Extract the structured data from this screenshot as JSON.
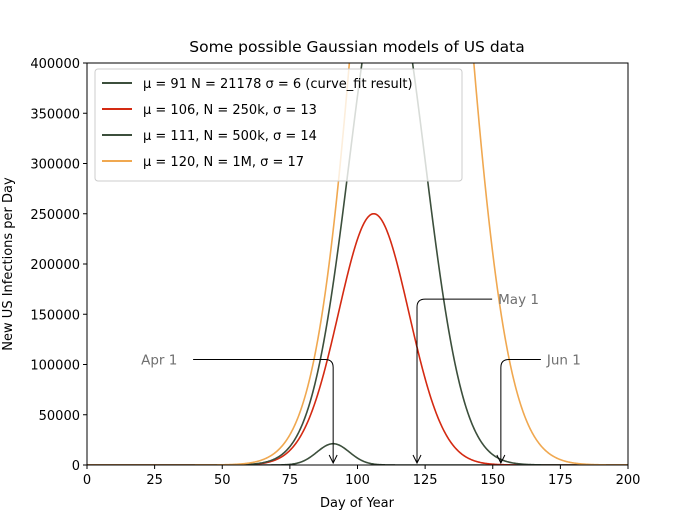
{
  "chart_data": {
    "type": "line",
    "title": "Some possible Gaussian models of US data",
    "xlabel": "Day of Year",
    "ylabel": "New US Infections per Day",
    "xlim": [
      0,
      200
    ],
    "ylim": [
      0,
      400000
    ],
    "xticks": [
      0,
      25,
      50,
      75,
      100,
      125,
      150,
      175,
      200
    ],
    "xtick_labels": [
      "0",
      "25",
      "50",
      "75",
      "100",
      "125",
      "150",
      "175",
      "200"
    ],
    "yticks": [
      0,
      50000,
      100000,
      150000,
      200000,
      250000,
      300000,
      350000,
      400000
    ],
    "ytick_labels": [
      "0",
      "50000",
      "100000",
      "150000",
      "200000",
      "250000",
      "300000",
      "350000",
      "400000"
    ],
    "grid": false,
    "legend_position": "top-left",
    "series": [
      {
        "name_parts": [
          "μ = 91",
          "N = 21178",
          "σ = 6 (curve_fit result)"
        ],
        "mu": 91,
        "N": 21178,
        "sigma": 6,
        "color": "#3c4f3c"
      },
      {
        "name_parts": [
          "μ = 106,",
          "N = 250k,",
          "σ = 13"
        ],
        "mu": 106,
        "N": 250000,
        "sigma": 13,
        "color": "#d42a12"
      },
      {
        "name_parts": [
          "μ = 111,",
          "N = 500k,",
          "σ = 14"
        ],
        "mu": 111,
        "N": 500000,
        "sigma": 14,
        "color": "#3c4f3c"
      },
      {
        "name_parts": [
          "μ = 120,",
          "N = 1M,",
          "σ = 17"
        ],
        "mu": 120,
        "N": 1000000,
        "sigma": 17,
        "color": "#f0a850"
      }
    ],
    "annotations": [
      {
        "text": "Apr 1",
        "x": 91,
        "y": 0,
        "text_x": 20,
        "text_y": 105000
      },
      {
        "text": "May 1",
        "x": 122,
        "y": 0,
        "text_x": 152,
        "text_y": 165000
      },
      {
        "text": "Jun 1",
        "x": 153,
        "y": 0,
        "text_x": 170,
        "text_y": 105000
      }
    ]
  }
}
